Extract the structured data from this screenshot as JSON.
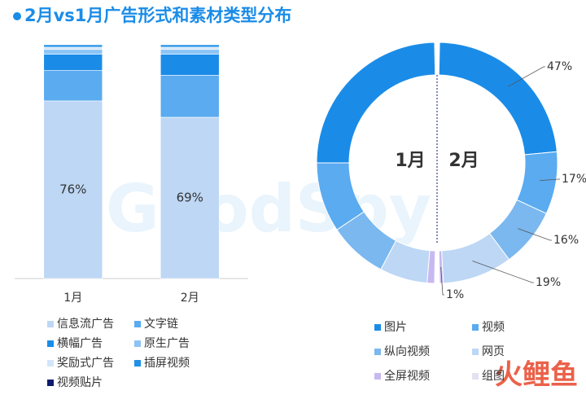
{
  "title": "2月vs1月广告形式和素材类型分布",
  "watermark": "GoodSpy",
  "logo": "火鲤鱼",
  "chart_data": [
    {
      "type": "bar",
      "stacked": true,
      "categories": [
        "1月",
        "2月"
      ],
      "ylim": [
        0,
        100
      ],
      "series": [
        {
          "name": "信息流广告",
          "color": "#bdd7f5",
          "values": [
            76,
            69
          ],
          "value_labels": [
            "76%",
            "69%"
          ]
        },
        {
          "name": "文字链",
          "color": "#5aabf0",
          "values": [
            13,
            18
          ]
        },
        {
          "name": "横幅广告",
          "color": "#1a8ce8",
          "values": [
            7,
            9
          ]
        },
        {
          "name": "原生广告",
          "color": "#8cc4f5",
          "values": [
            2,
            2
          ]
        },
        {
          "name": "奖励式广告",
          "color": "#d2e6fa",
          "values": [
            1,
            1
          ]
        },
        {
          "name": "插屏视频",
          "color": "#1f90e6",
          "values": [
            1,
            1
          ]
        },
        {
          "name": "视频贴片",
          "color": "#0d1a6e",
          "values": [
            0,
            0
          ]
        }
      ]
    },
    {
      "type": "donut",
      "categories": [
        "图片",
        "视频",
        "纵向视频",
        "网页",
        "全屏视频",
        "组图"
      ],
      "colors": [
        "#1a8ce8",
        "#5aabf0",
        "#7ab8ef",
        "#bdd7f5",
        "#c8b8f0",
        "#e2e2f2"
      ],
      "series": [
        {
          "name": "1月",
          "values": [
            50,
            19,
            16,
            13,
            2,
            0
          ]
        },
        {
          "name": "2月",
          "values": [
            47,
            17,
            16,
            19,
            1,
            0
          ],
          "value_labels": [
            "47%",
            "17%",
            "16%",
            "19%",
            "1%",
            null
          ]
        }
      ]
    }
  ]
}
